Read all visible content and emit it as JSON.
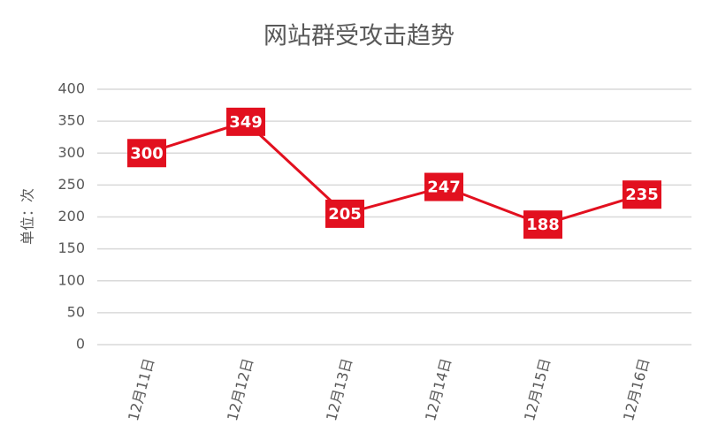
{
  "chart_data": {
    "type": "line",
    "title": "网站群受攻击趋势",
    "y_label": "单位：次",
    "categories": [
      "12月11日",
      "12月12日",
      "12月13日",
      "12月14日",
      "12月15日",
      "12月16日"
    ],
    "values": [
      300,
      349,
      205,
      247,
      188,
      235
    ],
    "color": "#e2101f",
    "ylim": [
      0,
      400
    ],
    "yticks": [
      0,
      50,
      100,
      150,
      200,
      250,
      300,
      350,
      400
    ],
    "grid": true
  }
}
